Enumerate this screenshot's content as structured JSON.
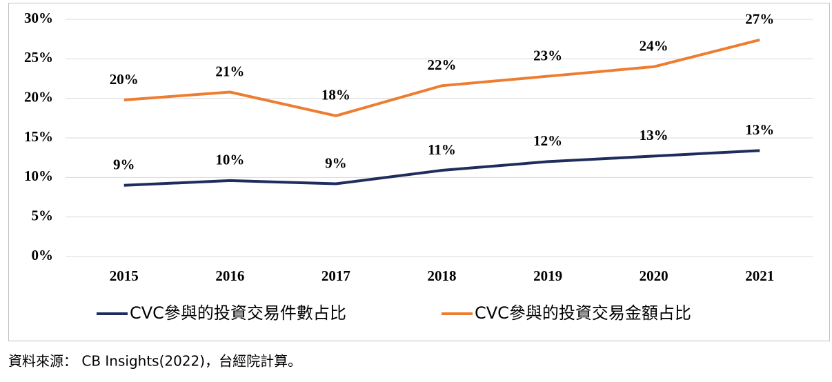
{
  "chart_data": {
    "type": "line",
    "categories": [
      "2015",
      "2016",
      "2017",
      "2018",
      "2019",
      "2020",
      "2021"
    ],
    "series": [
      {
        "name": "CVC參與的投資交易件數占比",
        "color": "#1f2d5c",
        "values": [
          9.0,
          9.6,
          9.2,
          10.9,
          12.0,
          12.7,
          13.4
        ],
        "value_labels": [
          "9%",
          "10%",
          "9%",
          "11%",
          "12%",
          "13%",
          "13%"
        ]
      },
      {
        "name": "CVC參與的投資交易金額占比",
        "color": "#ed7d31",
        "values": [
          19.8,
          20.8,
          17.8,
          21.6,
          22.8,
          24.0,
          27.4
        ],
        "value_labels": [
          "20%",
          "21%",
          "18%",
          "22%",
          "23%",
          "24%",
          "27%"
        ]
      }
    ],
    "ylim": [
      0,
      30
    ],
    "yticks": [
      {
        "value": 0,
        "label": "0%"
      },
      {
        "value": 5,
        "label": "5%"
      },
      {
        "value": 10,
        "label": "10%"
      },
      {
        "value": 15,
        "label": "15%"
      },
      {
        "value": 20,
        "label": "20%"
      },
      {
        "value": 25,
        "label": "25%"
      },
      {
        "value": 30,
        "label": "30%"
      }
    ],
    "grid": true,
    "legend": "bottom",
    "source": "資料來源： CB Insights(2022)，台經院計算。"
  }
}
